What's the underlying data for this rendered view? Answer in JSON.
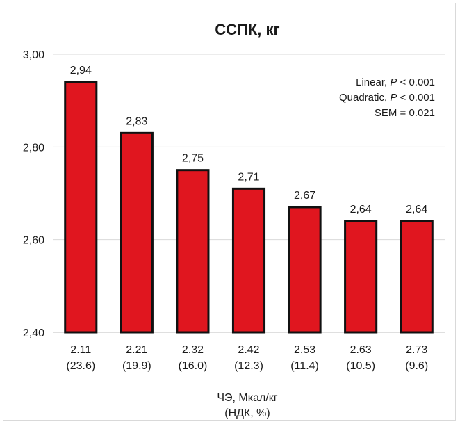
{
  "chart_data": {
    "type": "bar",
    "title": "ССПК, кг",
    "xlabel": [
      "ЧЭ, Мкал/кг",
      "(НДК, %)"
    ],
    "ylabel": "",
    "ylim": [
      2.4,
      3.0
    ],
    "yticks": [
      "2,40",
      "2,60",
      "2,80",
      "3,00"
    ],
    "categories": [
      [
        "2.11",
        "(23.6)"
      ],
      [
        "2.21",
        "(19.9)"
      ],
      [
        "2.32",
        "(16.0)"
      ],
      [
        "2.42",
        "(12.3)"
      ],
      [
        "2.53",
        "(11.4)"
      ],
      [
        "2.63",
        "(10.5)"
      ],
      [
        "2.73",
        "(9.6)"
      ]
    ],
    "values": [
      2.94,
      2.83,
      2.75,
      2.71,
      2.67,
      2.64,
      2.64
    ],
    "data_labels": [
      "2,94",
      "2,83",
      "2,75",
      "2,71",
      "2,67",
      "2,64",
      "2,64"
    ],
    "bar_color": "#e0161f",
    "bar_edge_color": "#111111",
    "grid": true,
    "annotations": {
      "linear": {
        "prefix": "Linear, ",
        "p": "P",
        "suffix": " < 0.001"
      },
      "quadratic": {
        "prefix": "Quadratic, ",
        "p": "P",
        "suffix": " < 0.001"
      },
      "sem": "SEM = 0.021"
    }
  }
}
